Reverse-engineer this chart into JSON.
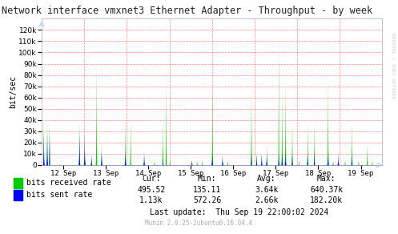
{
  "title": "Network interface vmxnet3 Ethernet Adapter - Throughput - by week",
  "ylabel": "bit/sec",
  "watermark": "RRDTOOL / TOBI OETIKER",
  "munin_version": "Munin 2.0.25-2ubuntu0.16.04.4",
  "legend_labels": [
    "bits received rate",
    "bits sent rate"
  ],
  "legend_colors": [
    "#00cc00",
    "#0000ff"
  ],
  "x_tick_labels": [
    "12 Sep",
    "13 Sep",
    "14 Sep",
    "15 Sep",
    "16 Sep",
    "17 Sep",
    "18 Sep",
    "19 Sep"
  ],
  "ylim": [
    0,
    130000
  ],
  "ytick_vals": [
    0,
    10000,
    20000,
    30000,
    40000,
    50000,
    60000,
    70000,
    80000,
    90000,
    100000,
    110000,
    120000
  ],
  "stats_headers": [
    "Cur:",
    "Min:",
    "Avg:",
    "Max:"
  ],
  "stats_recv": [
    "495.52",
    "135.11",
    "3.64k",
    "640.37k"
  ],
  "stats_sent": [
    "1.13k",
    "572.26",
    "2.66k",
    "182.20k"
  ],
  "last_update": "Last update:  Thu Sep 19 22:00:02 2024",
  "background_color": "#ffffff",
  "grid_color": "#ff6666"
}
